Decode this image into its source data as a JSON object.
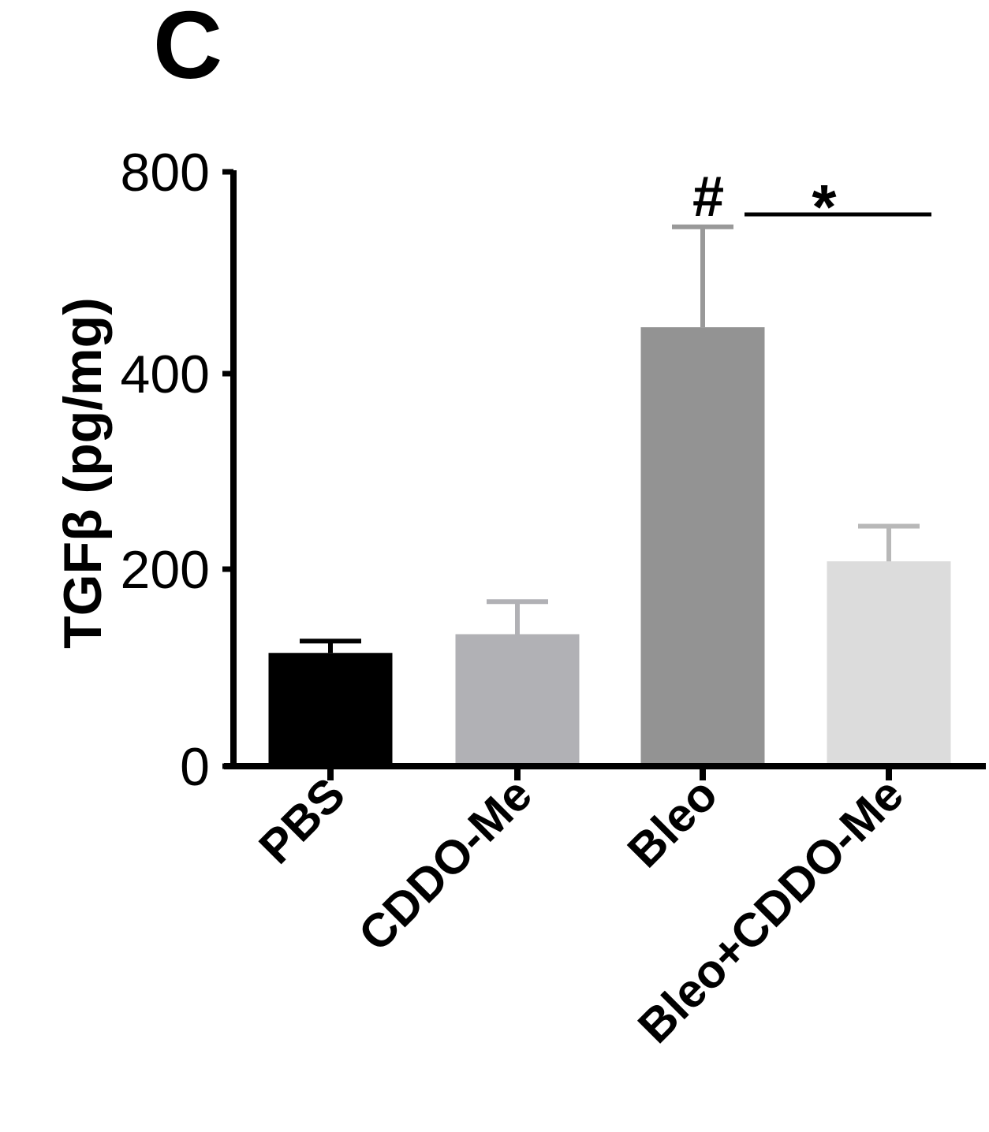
{
  "panel_label": "C",
  "chart_data": {
    "type": "bar",
    "title": "",
    "xlabel": "",
    "ylabel": "TGFβ (pg/mg)",
    "categories": [
      "PBS",
      "CDDO-Me",
      "Bleo",
      "Bleo+CDDO-Me"
    ],
    "values": [
      115,
      134,
      492,
      208
    ],
    "error_upper": [
      127,
      167,
      691,
      244
    ],
    "colors": [
      "#000000",
      "#b1b1b5",
      "#939393",
      "#dcdcdc"
    ],
    "error_colors": [
      "#000000",
      "#b1b1b5",
      "#999999",
      "#b8b8b8"
    ],
    "yticks": [
      0,
      200,
      400,
      800
    ],
    "ytick_labels": [
      "0",
      "200",
      "400",
      "800"
    ],
    "ylim": [
      0,
      800
    ],
    "axis_scale": "segmented (0-200, 200-400, 400-800 equally spaced)",
    "grid": false,
    "legend": null,
    "annotations": [
      {
        "text": "#",
        "target": "Bleo",
        "meaning": "significant vs PBS"
      },
      {
        "text": "*",
        "span": [
          "Bleo",
          "Bleo+CDDO-Me"
        ],
        "meaning": "significant between bracketed groups"
      }
    ]
  }
}
